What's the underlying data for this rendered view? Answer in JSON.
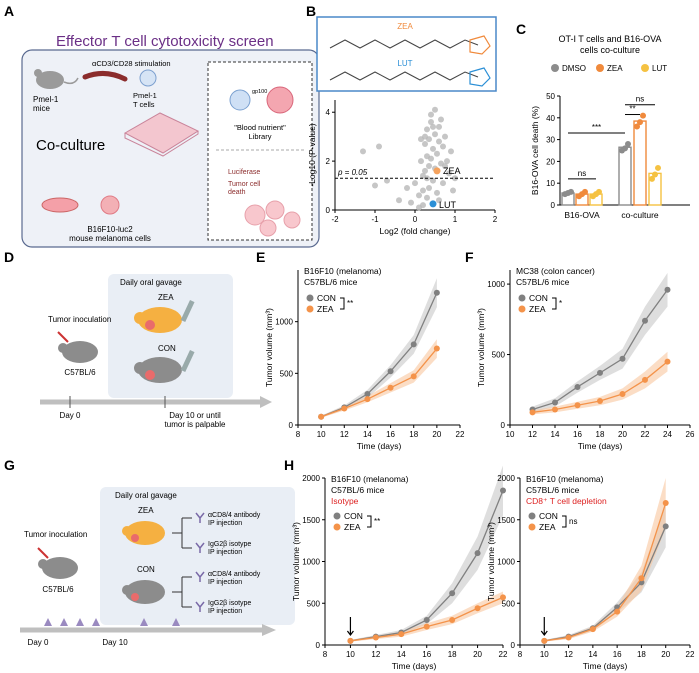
{
  "panels": {
    "A": "A",
    "B": "B",
    "C": "C",
    "D": "D",
    "E": "E",
    "F": "F",
    "G": "G",
    "H": "H"
  },
  "panelA": {
    "title": "Effector T cell cytotoxicity screen",
    "pmel_mice": "Pmel-1\nmice",
    "stim": "αCD3/CD28 stimulation",
    "pmel_t": "Pmel-1\nT cells",
    "coculture": "Co-culture",
    "gp100": "gp100",
    "nutrient": "\"Blood nutrient\"\nLibrary",
    "luciferase": "Luciferase",
    "tumor_death": "Tumor cell\ndeath",
    "cells": "B16F10-luc2\nmouse melanoma cells"
  },
  "panelB": {
    "zea_label": "ZEA",
    "lut_label": "LUT",
    "p_label": "p = 0.05",
    "ylabel": "-Log10 (P-value)",
    "xlabel": "Log2 (fold change)",
    "point_zea": "ZEA",
    "point_lut": "LUT",
    "colors": {
      "zea": "#f5a25d",
      "lut": "#2b8fd6",
      "grey": "#b8b8b8"
    }
  },
  "panelC": {
    "title": "OT-I T cells and B16-OVA\ncells co-culture",
    "ylabel": "B16-OVA cell death (%)",
    "legend": [
      "DMSO",
      "ZEA",
      "LUT"
    ],
    "groups": [
      "B16-OVA",
      "co-culture"
    ],
    "sig": [
      "ns",
      "***",
      "**",
      "ns"
    ],
    "colors": {
      "DMSO": "#8c8c8c",
      "ZEA": "#f08a3c",
      "LUT": "#f5c242"
    }
  },
  "panelD": {
    "gavage": "Daily oral gavage",
    "zea": "ZEA",
    "con": "CON",
    "inoculation": "Tumor inoculation",
    "strain": "C57BL/6",
    "day0": "Day 0",
    "day10": "Day 10 or until\ntumor is palpable"
  },
  "panelE": {
    "line1": "B16F10 (melanoma)",
    "line2": "C57BL/6 mice",
    "legend": [
      "CON",
      "ZEA"
    ],
    "sig": "**",
    "ylabel": "Tumor volume (mm³)",
    "xlabel": "Time (days)"
  },
  "panelF": {
    "line1": "MC38 (colon cancer)",
    "line2": "C57BL/6 mice",
    "legend": [
      "CON",
      "ZEA"
    ],
    "sig": "*",
    "ylabel": "Tumor volume (mm³)",
    "xlabel": "Time (days)"
  },
  "panelG": {
    "gavage": "Daily oral gavage",
    "zea": "ZEA",
    "con": "CON",
    "inoculation": "Tumor inoculation",
    "strain": "C57BL/6",
    "ab1": "αCD8/4 antibody\nIP injection",
    "iso1": "IgG2β isotype\nIP injection",
    "ab2": "αCD8/4 antibody\nIP injection",
    "iso2": "IgG2β isotype\nIP injection",
    "day0": "Day 0",
    "day10": "Day 10"
  },
  "panelH1": {
    "line1": "B16F10 (melanoma)",
    "line2": "C57BL/6 mice",
    "line3": "Isotype",
    "legend": [
      "CON",
      "ZEA"
    ],
    "sig": "**",
    "ylabel": "Tumor volume (mm³)",
    "xlabel": "Time (days)"
  },
  "panelH2": {
    "line1": "B16F10 (melanoma)",
    "line2": "C57BL/6 mice",
    "line3": "CD8⁺ T cell depletion",
    "legend": [
      "CON",
      "ZEA"
    ],
    "sig": "ns",
    "ylabel": "Tumor volume (mm³)",
    "xlabel": "Time (days)"
  },
  "chart_data": [
    {
      "id": "B",
      "type": "scatter",
      "xlabel": "Log2 (fold change)",
      "ylabel": "-Log10 (P-value)",
      "xlim": [
        -2,
        2
      ],
      "ylim": [
        0,
        4.5
      ],
      "xticks": [
        -2,
        -1,
        0,
        1,
        2
      ],
      "yticks": [
        0,
        2,
        4
      ],
      "threshold": 1.3,
      "highlight": [
        {
          "name": "ZEA",
          "x": 0.55,
          "y": 1.6
        },
        {
          "name": "LUT",
          "x": 0.45,
          "y": 0.25
        }
      ],
      "points": [
        [
          -1.3,
          2.4
        ],
        [
          -0.9,
          2.6
        ],
        [
          -1.0,
          1.0
        ],
        [
          -0.7,
          1.2
        ],
        [
          -0.4,
          0.4
        ],
        [
          -0.2,
          0.9
        ],
        [
          -0.1,
          0.3
        ],
        [
          0.0,
          1.1
        ],
        [
          0.1,
          0.6
        ],
        [
          0.15,
          2.0
        ],
        [
          0.2,
          1.4
        ],
        [
          0.25,
          2.7
        ],
        [
          0.25,
          3.0
        ],
        [
          0.3,
          3.3
        ],
        [
          0.3,
          2.2
        ],
        [
          0.35,
          1.8
        ],
        [
          0.35,
          2.9
        ],
        [
          0.4,
          3.6
        ],
        [
          0.4,
          3.9
        ],
        [
          0.45,
          2.5
        ],
        [
          0.45,
          1.2
        ],
        [
          0.5,
          4.1
        ],
        [
          0.5,
          3.1
        ],
        [
          0.55,
          2.3
        ],
        [
          0.6,
          2.8
        ],
        [
          0.6,
          3.4
        ],
        [
          0.65,
          1.9
        ],
        [
          0.7,
          2.6
        ],
        [
          0.75,
          3.0
        ],
        [
          0.8,
          2.0
        ],
        [
          0.85,
          1.5
        ],
        [
          0.9,
          2.4
        ],
        [
          0.95,
          0.8
        ],
        [
          0.3,
          0.5
        ],
        [
          0.2,
          0.2
        ],
        [
          0.1,
          0.1
        ],
        [
          0.35,
          0.9
        ],
        [
          0.55,
          0.7
        ],
        [
          0.25,
          1.6
        ],
        [
          0.4,
          2.1
        ],
        [
          0.5,
          1.7
        ],
        [
          0.7,
          1.1
        ],
        [
          0.65,
          3.7
        ],
        [
          0.45,
          3.4
        ],
        [
          0.3,
          1.3
        ],
        [
          0.2,
          0.8
        ],
        [
          0.6,
          0.4
        ],
        [
          1.0,
          1.3
        ],
        [
          0.15,
          2.9
        ],
        [
          0.75,
          1.8
        ]
      ]
    },
    {
      "id": "C",
      "type": "bar",
      "categories": [
        "B16-OVA",
        "co-culture"
      ],
      "ylim": [
        0,
        50
      ],
      "yticks": [
        0,
        10,
        20,
        30,
        40,
        50
      ],
      "series": [
        {
          "name": "DMSO",
          "values": [
            5.5,
            26.5
          ],
          "points": [
            [
              5,
              5.5,
              6
            ],
            [
              25,
              26,
              28
            ]
          ]
        },
        {
          "name": "ZEA",
          "values": [
            5.0,
            38.5
          ],
          "points": [
            [
              4,
              5,
              6
            ],
            [
              36,
              38,
              41
            ]
          ]
        },
        {
          "name": "LUT",
          "values": [
            5.0,
            14.5
          ],
          "points": [
            [
              4,
              5,
              6
            ],
            [
              12,
              14,
              17
            ]
          ]
        }
      ]
    },
    {
      "id": "E",
      "type": "line",
      "xlim": [
        8,
        22
      ],
      "ylim": [
        0,
        1500
      ],
      "xticks": [
        8,
        10,
        12,
        14,
        16,
        18,
        20,
        22
      ],
      "yticks": [
        0,
        500,
        1000
      ],
      "x": [
        10,
        12,
        14,
        16,
        18,
        20
      ],
      "series": [
        {
          "name": "CON",
          "values": [
            80,
            170,
            300,
            520,
            780,
            1280
          ],
          "sem": [
            10,
            20,
            40,
            60,
            90,
            140
          ]
        },
        {
          "name": "ZEA",
          "values": [
            80,
            160,
            250,
            360,
            470,
            740
          ],
          "sem": [
            10,
            20,
            30,
            45,
            60,
            90
          ]
        }
      ]
    },
    {
      "id": "F",
      "type": "line",
      "xlim": [
        10,
        26
      ],
      "ylim": [
        0,
        1100
      ],
      "xticks": [
        10,
        12,
        14,
        16,
        18,
        20,
        22,
        24,
        26
      ],
      "yticks": [
        0,
        500,
        1000
      ],
      "x": [
        12,
        14,
        16,
        18,
        20,
        22,
        24
      ],
      "series": [
        {
          "name": "CON",
          "values": [
            110,
            160,
            270,
            370,
            470,
            740,
            960
          ],
          "sem": [
            20,
            30,
            40,
            50,
            70,
            100,
            120
          ]
        },
        {
          "name": "ZEA",
          "values": [
            90,
            110,
            140,
            170,
            220,
            320,
            450
          ],
          "sem": [
            15,
            20,
            25,
            30,
            40,
            60,
            70
          ]
        }
      ]
    },
    {
      "id": "H1",
      "type": "line",
      "xlim": [
        8,
        22
      ],
      "ylim": [
        0,
        2000
      ],
      "xticks": [
        8,
        10,
        12,
        14,
        16,
        18,
        20,
        22
      ],
      "yticks": [
        0,
        500,
        1000,
        1500,
        2000
      ],
      "x": [
        10,
        12,
        14,
        16,
        18,
        20,
        22
      ],
      "series": [
        {
          "name": "CON",
          "values": [
            50,
            100,
            150,
            300,
            620,
            1100,
            1850
          ],
          "sem": [
            10,
            20,
            30,
            50,
            120,
            200,
            300
          ]
        },
        {
          "name": "ZEA",
          "values": [
            50,
            90,
            130,
            220,
            300,
            440,
            570
          ],
          "sem": [
            10,
            20,
            30,
            40,
            50,
            60,
            70
          ]
        }
      ]
    },
    {
      "id": "H2",
      "type": "line",
      "xlim": [
        8,
        22
      ],
      "ylim": [
        0,
        2000
      ],
      "xticks": [
        8,
        10,
        12,
        14,
        16,
        18,
        20,
        22
      ],
      "yticks": [
        0,
        500,
        1000,
        1500,
        2000
      ],
      "x": [
        10,
        12,
        14,
        16,
        18,
        20
      ],
      "series": [
        {
          "name": "CON",
          "values": [
            50,
            100,
            200,
            450,
            750,
            1420
          ],
          "sem": [
            10,
            20,
            30,
            60,
            120,
            250
          ]
        },
        {
          "name": "ZEA",
          "values": [
            50,
            90,
            190,
            400,
            800,
            1700
          ],
          "sem": [
            10,
            20,
            30,
            60,
            150,
            300
          ]
        }
      ]
    }
  ]
}
